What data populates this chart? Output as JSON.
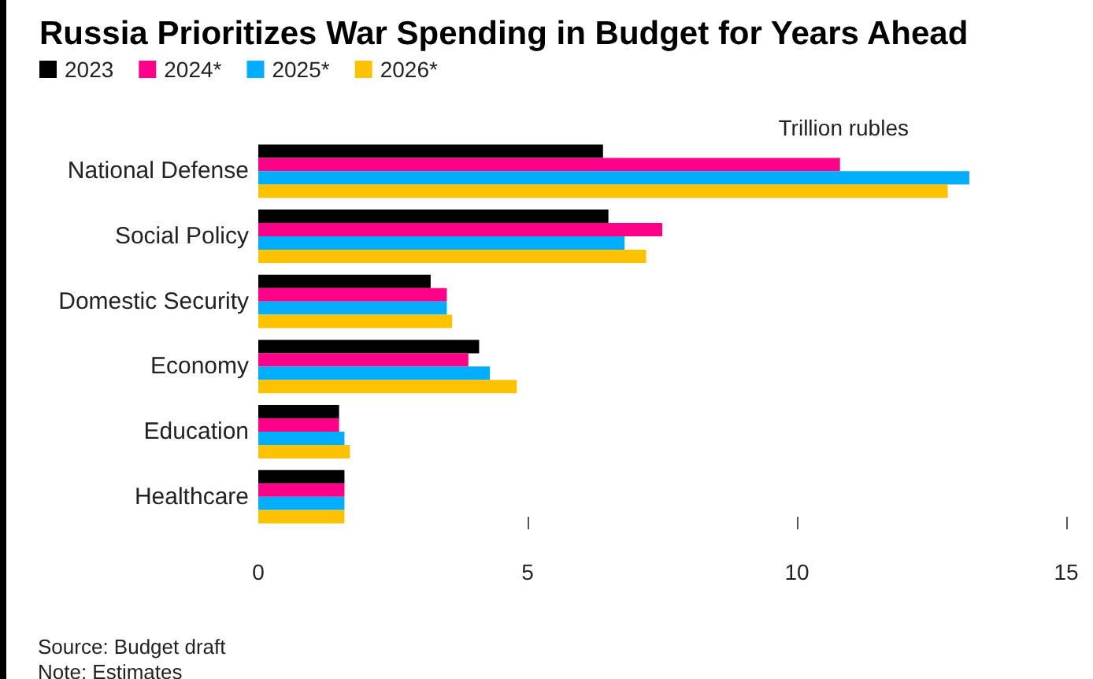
{
  "chart_data": {
    "type": "bar",
    "orientation": "horizontal",
    "title": "Russia Prioritizes War Spending in Budget for Years Ahead",
    "xlabel": "Trillion rubles",
    "categories": [
      "National Defense",
      "Social Policy",
      "Domestic Security",
      "Economy",
      "Education",
      "Healthcare"
    ],
    "series": [
      {
        "name": "2023",
        "color": "#000000",
        "values": [
          6.4,
          6.5,
          3.2,
          4.1,
          1.5,
          1.6
        ]
      },
      {
        "name": "2024*",
        "color": "#ff0088",
        "values": [
          10.8,
          7.5,
          3.5,
          3.9,
          1.5,
          1.6
        ]
      },
      {
        "name": "2025*",
        "color": "#00aeff",
        "values": [
          13.2,
          6.8,
          3.5,
          4.3,
          1.6,
          1.6
        ]
      },
      {
        "name": "2026*",
        "color": "#ffc200",
        "values": [
          12.8,
          7.2,
          3.6,
          4.8,
          1.7,
          1.6
        ]
      }
    ],
    "xlim": [
      0,
      15
    ],
    "xticks": [
      0,
      5,
      10,
      15
    ],
    "grid": false,
    "legend": "top left",
    "annotations": [
      "Source: Budget draft",
      "Note: Estimates"
    ]
  }
}
